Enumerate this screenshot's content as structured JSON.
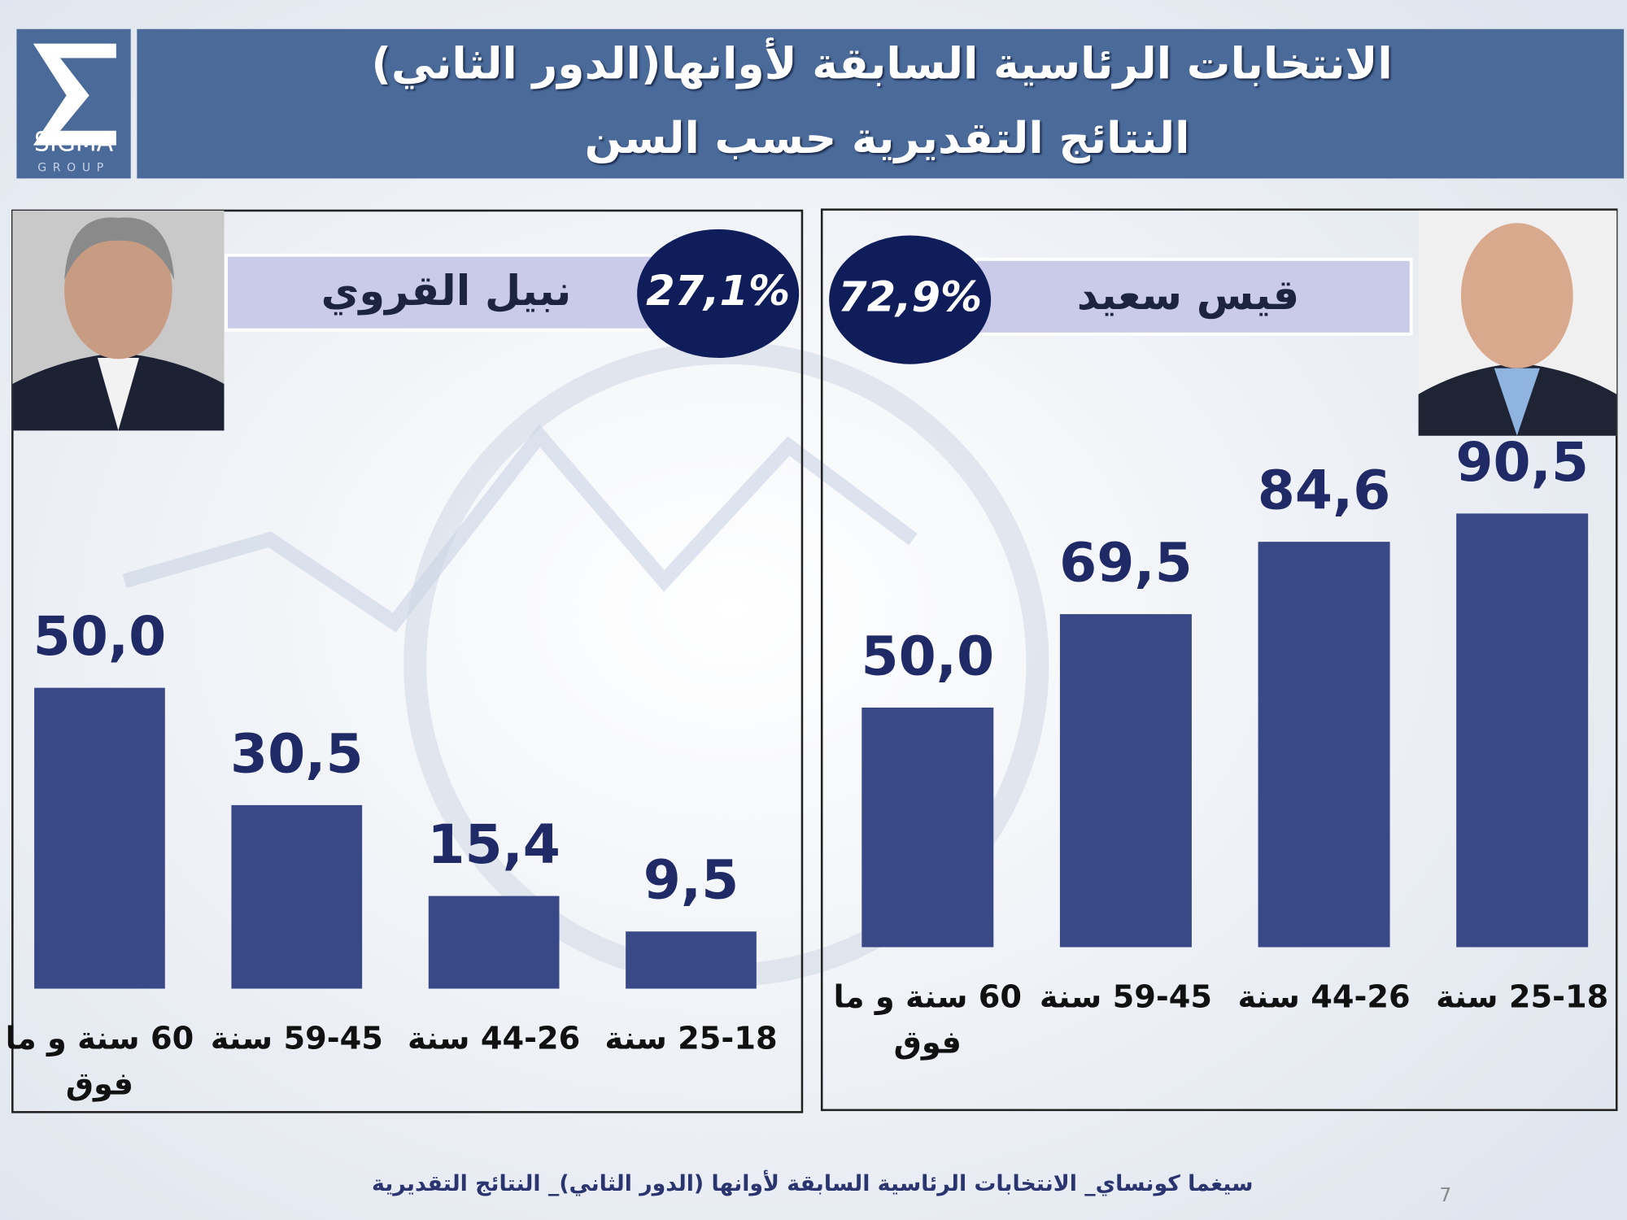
{
  "header": {
    "title": "الانتخابات الرئاسية السابقة لأوانها(الدور الثاني)",
    "subtitle": "النتائج التقديرية حسب السن"
  },
  "logo": {
    "name": "SIGMA",
    "tagline": "GROUP"
  },
  "chart_data": [
    {
      "type": "bar",
      "title": "نبيل القروي",
      "total": 27.1,
      "total_label": "27,1%",
      "categories": [
        "60 سنة و ما فوق",
        "59-45 سنة",
        "44-26 سنة",
        "25-18 سنة"
      ],
      "values": [
        50.0,
        30.5,
        15.4,
        9.5
      ],
      "value_labels": [
        "50,0",
        "30,5",
        "15,4",
        "9,5"
      ],
      "color": "#394887"
    },
    {
      "type": "bar",
      "title": "قيس سعيد",
      "total": 72.9,
      "total_label": "72,9%",
      "categories": [
        "60 سنة و ما فوق",
        "59-45 سنة",
        "44-26 سنة",
        "25-18 سنة"
      ],
      "values": [
        50.0,
        69.5,
        84.6,
        90.5
      ],
      "value_labels": [
        "50,0",
        "69,5",
        "84,6",
        "90,5"
      ],
      "color": "#394887"
    }
  ],
  "footer": "سيغما كونساي_ الانتخابات الرئاسية السابقة لأوانها (الدور الثاني)_ النتائج التقديرية",
  "page_number": "7"
}
